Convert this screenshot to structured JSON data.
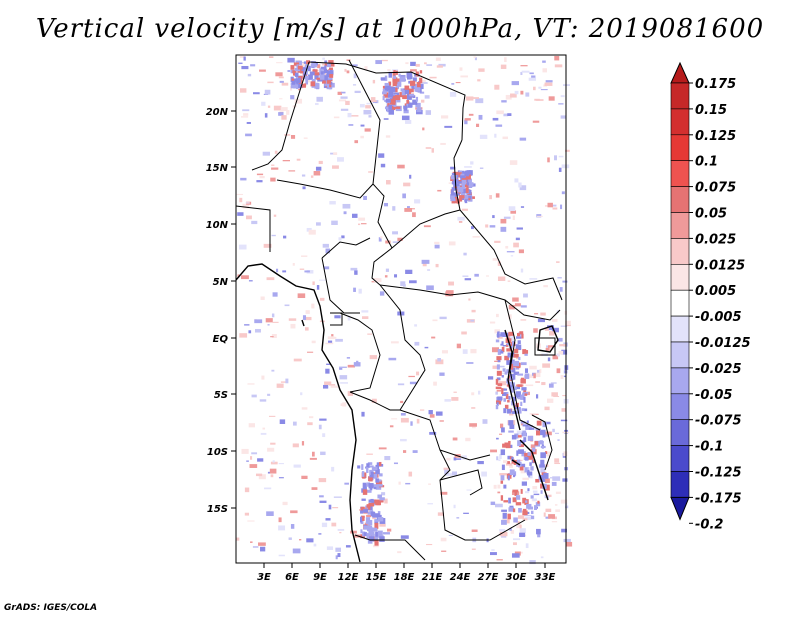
{
  "title": "Vertical velocity [m/s] at 1000hPa, VT: 2019081600",
  "credit": "GrADS: IGES/COLA",
  "map": {
    "lat_labels": [
      "20N",
      "15N",
      "10N",
      "5N",
      "EQ",
      "5S",
      "10S",
      "15S"
    ],
    "lon_labels": [
      "3E",
      "6E",
      "9E",
      "12E",
      "15E",
      "18E",
      "21E",
      "24E",
      "27E",
      "30E",
      "33E"
    ],
    "lon_range": [
      0,
      35
    ],
    "lat_range": [
      -20,
      25
    ]
  },
  "colorbar": {
    "levels": [
      "0.175",
      "0.15",
      "0.125",
      "0.1",
      "0.075",
      "0.05",
      "0.025",
      "0.0125",
      "0.005",
      "-0.005",
      "-0.0125",
      "-0.025",
      "-0.05",
      "-0.075",
      "-0.1",
      "-0.125",
      "-0.175",
      "-0.2"
    ],
    "colors": [
      "#b71c1c",
      "#c62828",
      "#d32f2f",
      "#e53935",
      "#ef5350",
      "#e57373",
      "#ef9a9a",
      "#f8c9c9",
      "#fbe6e6",
      "#ffffff",
      "#e3e3fb",
      "#c8c8f5",
      "#a8a8ef",
      "#8a8ae6",
      "#6a6ad9",
      "#4b4bcc",
      "#2e2eb8",
      "#1a1a9e"
    ]
  }
}
